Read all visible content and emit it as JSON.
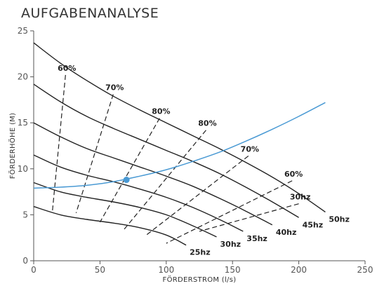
{
  "chart_data": {
    "type": "line",
    "title": "AUFGABENANALYSE",
    "xlabel": "FÖRDERSTROM (l/s)",
    "ylabel": "FÖRDERHÖHE (M)",
    "xlim": [
      0,
      250
    ],
    "ylim": [
      0,
      25
    ],
    "x_ticks": [
      "0",
      "50",
      "100",
      "150",
      "200",
      "250"
    ],
    "y_ticks": [
      "0",
      "5",
      "10",
      "15",
      "20",
      "25"
    ],
    "grid": false,
    "pump_curves": [
      {
        "name": "25hz",
        "points": [
          [
            0,
            5.9
          ],
          [
            20,
            5.0
          ],
          [
            40,
            4.5
          ],
          [
            60,
            4.1
          ],
          [
            80,
            3.6
          ],
          [
            100,
            2.8
          ],
          [
            115,
            1.7
          ]
        ]
      },
      {
        "name": "30hz",
        "points": [
          [
            0,
            8.5
          ],
          [
            20,
            7.5
          ],
          [
            40,
            6.9
          ],
          [
            60,
            6.4
          ],
          [
            80,
            5.8
          ],
          [
            100,
            5.0
          ],
          [
            120,
            3.8
          ],
          [
            138,
            2.6
          ]
        ]
      },
      {
        "name": "35hz",
        "points": [
          [
            0,
            11.5
          ],
          [
            20,
            10.2
          ],
          [
            40,
            9.3
          ],
          [
            60,
            8.6
          ],
          [
            80,
            7.8
          ],
          [
            100,
            6.9
          ],
          [
            120,
            5.8
          ],
          [
            140,
            4.5
          ],
          [
            158,
            3.2
          ]
        ]
      },
      {
        "name": "40hz",
        "points": [
          [
            0,
            15.0
          ],
          [
            20,
            13.5
          ],
          [
            40,
            12.2
          ],
          [
            60,
            11.2
          ],
          [
            80,
            10.2
          ],
          [
            100,
            9.2
          ],
          [
            120,
            8.1
          ],
          [
            140,
            6.8
          ],
          [
            160,
            5.4
          ],
          [
            180,
            3.9
          ]
        ]
      },
      {
        "name": "45hz",
        "points": [
          [
            0,
            19.2
          ],
          [
            20,
            17.3
          ],
          [
            40,
            15.7
          ],
          [
            60,
            14.4
          ],
          [
            80,
            13.2
          ],
          [
            100,
            12.0
          ],
          [
            120,
            10.8
          ],
          [
            140,
            9.5
          ],
          [
            160,
            8.0
          ],
          [
            180,
            6.4
          ],
          [
            200,
            4.7
          ]
        ]
      },
      {
        "name": "50hz",
        "points": [
          [
            0,
            23.7
          ],
          [
            20,
            21.5
          ],
          [
            40,
            19.6
          ],
          [
            60,
            17.9
          ],
          [
            80,
            16.4
          ],
          [
            100,
            15.0
          ],
          [
            120,
            13.6
          ],
          [
            140,
            12.2
          ],
          [
            160,
            10.7
          ],
          [
            180,
            9.1
          ],
          [
            200,
            7.3
          ],
          [
            220,
            5.3
          ]
        ]
      }
    ],
    "system_curve": {
      "points": [
        [
          0,
          7.9
        ],
        [
          20,
          8.0
        ],
        [
          40,
          8.2
        ],
        [
          60,
          8.6
        ],
        [
          80,
          9.2
        ],
        [
          100,
          9.9
        ],
        [
          120,
          10.8
        ],
        [
          140,
          11.8
        ],
        [
          160,
          13.0
        ],
        [
          180,
          14.3
        ],
        [
          200,
          15.7
        ],
        [
          220,
          17.2
        ]
      ]
    },
    "operating_point": {
      "x": 70,
      "y": 8.8
    },
    "efficiency_lines": [
      {
        "label": "60%",
        "points": [
          [
            24,
            20.2
          ],
          [
            14,
            5.2
          ]
        ]
      },
      {
        "label": "70%",
        "points": [
          [
            60,
            18.1
          ],
          [
            32,
            5.2
          ]
        ]
      },
      {
        "label": "80%",
        "points": [
          [
            95,
            15.5
          ],
          [
            50,
            4.2
          ]
        ]
      },
      {
        "label": "80%",
        "points": [
          [
            130,
            14.2
          ],
          [
            67,
            3.2
          ]
        ]
      },
      {
        "label": "70%",
        "points": [
          [
            162,
            11.4
          ],
          [
            85,
            2.8
          ]
        ]
      },
      {
        "label": "60%",
        "points": [
          [
            195,
            8.7
          ],
          [
            100,
            1.9
          ]
        ]
      },
      {
        "label": "30hz",
        "points": [
          [
            200,
            6.2
          ],
          [
            125,
            3.2
          ]
        ]
      }
    ],
    "colors": {
      "pump_curve": "#222222",
      "system_curve": "#4a9ad4",
      "operating_point": "#4a9ad4",
      "axis": "#555555",
      "efficiency_line": "#222222"
    }
  }
}
